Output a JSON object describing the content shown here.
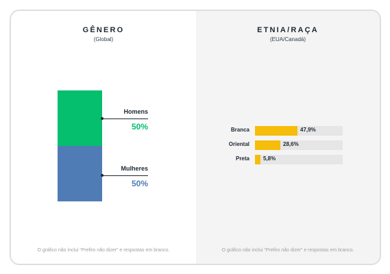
{
  "colors": {
    "men": "#05bf6e",
    "women": "#507cb6",
    "bar": "#f6bd0b"
  },
  "gender": {
    "title": "GÊNERO",
    "subtitle": "(Global)",
    "note": "O gráfico não inclui “Prefiro não dizer” e respostas em branco."
  },
  "ethnicity": {
    "title": "ETNIA/RAÇA",
    "subtitle": "(EUA/Canadá)",
    "note": "O gráfico não inclui “Prefiro não dizer” e respostas em branco."
  },
  "chart_data": [
    {
      "type": "bar",
      "stacked": true,
      "title": "GÊNERO",
      "subtitle": "(Global)",
      "categories": [
        "Homens",
        "Mulheres"
      ],
      "values": [
        50,
        50
      ],
      "value_labels": [
        "50%",
        "50%"
      ]
    },
    {
      "type": "bar",
      "orientation": "horizontal",
      "title": "ETNIA/RAÇA",
      "subtitle": "(EUA/Canadá)",
      "categories": [
        "Branca",
        "Oriental",
        "Preta"
      ],
      "values": [
        47.9,
        28.6,
        5.8
      ],
      "value_labels": [
        "47,9%",
        "28,6%",
        "5,8%"
      ],
      "xlim": [
        0,
        100
      ]
    }
  ]
}
